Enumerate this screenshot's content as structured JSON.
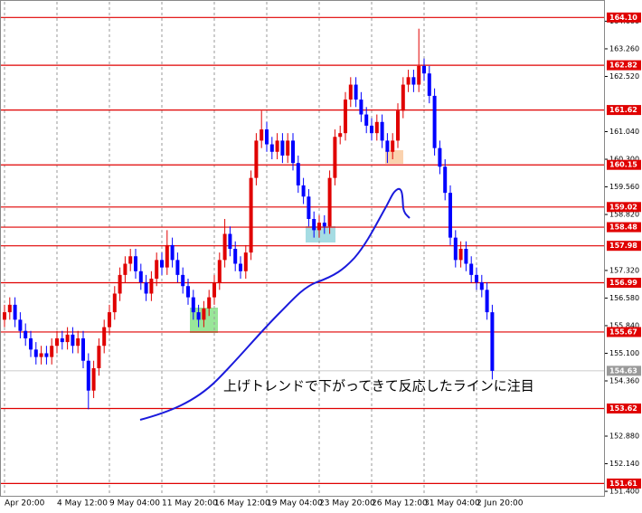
{
  "chart_data": {
    "type": "candlestick",
    "annotation": "上げトレンドで下がってきて反応したラインに注目",
    "categories": [
      "Apr 20:00",
      null,
      null,
      null,
      null,
      null,
      null,
      null,
      null,
      null,
      "4 May 12:00",
      null,
      null,
      null,
      null,
      null,
      null,
      null,
      null,
      null,
      "9 May 04:00",
      null,
      null,
      null,
      null,
      null,
      null,
      null,
      null,
      null,
      "11 May 20:00",
      null,
      null,
      null,
      null,
      null,
      null,
      null,
      null,
      null,
      "16 May 12:00",
      null,
      null,
      null,
      null,
      null,
      null,
      null,
      null,
      null,
      "19 May 04:00",
      null,
      null,
      null,
      null,
      null,
      null,
      null,
      null,
      null,
      "23 May 20:00",
      null,
      null,
      null,
      null,
      null,
      null,
      null,
      null,
      null,
      "26 May 12:00",
      null,
      null,
      null,
      null,
      null,
      null,
      null,
      null,
      null,
      "31 May 04:00",
      null,
      null,
      null,
      null,
      null,
      null,
      null,
      null,
      null,
      "2 Jun 20:00",
      null,
      null,
      null
    ],
    "open": [
      156.0,
      156.2,
      156.4,
      156.0,
      155.7,
      155.5,
      155.2,
      155.0,
      155.1,
      155.0,
      155.3,
      155.5,
      155.4,
      155.6,
      155.3,
      155.5,
      154.9,
      154.1,
      154.7,
      155.3,
      155.8,
      156.2,
      156.7,
      157.2,
      157.5,
      157.7,
      157.3,
      157.0,
      156.7,
      157.1,
      157.6,
      157.4,
      158.0,
      157.6,
      157.2,
      156.9,
      156.6,
      156.2,
      156.0,
      156.3,
      156.6,
      157.0,
      157.6,
      158.3,
      157.9,
      157.5,
      157.3,
      157.8,
      159.8,
      160.8,
      161.1,
      160.7,
      160.5,
      160.8,
      160.4,
      160.8,
      160.2,
      159.6,
      159.3,
      158.7,
      158.4,
      158.6,
      158.5,
      159.8,
      160.9,
      161.0,
      161.9,
      162.3,
      161.9,
      161.5,
      161.2,
      161.0,
      161.3,
      160.8,
      160.5,
      160.8,
      161.6,
      162.3,
      162.5,
      162.3,
      162.8,
      162.6,
      162.0,
      160.6,
      160.1,
      159.4,
      158.2,
      157.6,
      157.9,
      157.5,
      157.2,
      157.0,
      156.8,
      156.2
    ],
    "high": [
      156.4,
      156.6,
      156.6,
      156.2,
      155.9,
      155.7,
      155.4,
      155.3,
      155.3,
      155.5,
      155.7,
      155.7,
      155.8,
      155.8,
      155.7,
      155.7,
      155.1,
      154.9,
      155.5,
      156.0,
      156.4,
      156.9,
      157.4,
      157.7,
      157.9,
      157.9,
      157.5,
      157.2,
      157.3,
      157.8,
      157.8,
      158.4,
      158.2,
      157.8,
      157.4,
      157.1,
      156.8,
      156.4,
      156.5,
      156.8,
      157.2,
      157.8,
      158.7,
      158.5,
      158.1,
      157.7,
      158.0,
      160.0,
      161.0,
      161.6,
      161.3,
      160.9,
      161.0,
      161.0,
      161.0,
      161.0,
      160.4,
      159.8,
      159.5,
      158.9,
      158.8,
      158.8,
      160.0,
      161.1,
      161.2,
      162.1,
      162.5,
      162.5,
      162.1,
      161.7,
      161.4,
      161.5,
      161.5,
      161.0,
      161.0,
      161.8,
      162.5,
      162.7,
      162.7,
      163.8,
      163.0,
      162.8,
      162.2,
      160.8,
      160.3,
      159.6,
      158.4,
      158.1,
      158.1,
      157.7,
      157.4,
      157.2,
      157.0,
      156.4
    ],
    "low": [
      155.8,
      156.0,
      155.8,
      155.5,
      155.3,
      155.0,
      154.8,
      154.8,
      154.8,
      154.8,
      155.1,
      155.2,
      155.2,
      155.1,
      155.1,
      154.7,
      153.6,
      153.9,
      154.5,
      155.1,
      155.6,
      156.0,
      156.5,
      157.0,
      157.3,
      157.1,
      156.8,
      156.5,
      156.5,
      156.9,
      157.2,
      157.2,
      157.4,
      157.0,
      156.7,
      156.4,
      156.0,
      155.8,
      155.8,
      156.1,
      156.4,
      156.8,
      157.4,
      157.7,
      157.3,
      157.1,
      157.1,
      157.6,
      159.6,
      160.6,
      160.5,
      160.3,
      160.3,
      160.2,
      160.2,
      160.0,
      159.4,
      159.1,
      158.5,
      158.2,
      158.2,
      158.3,
      158.3,
      159.6,
      160.7,
      160.8,
      161.7,
      161.7,
      161.3,
      161.0,
      160.8,
      160.8,
      160.6,
      160.2,
      160.3,
      160.6,
      161.4,
      162.1,
      162.1,
      162.1,
      162.4,
      161.8,
      160.4,
      159.9,
      159.2,
      158.0,
      157.4,
      157.4,
      157.3,
      157.0,
      156.8,
      156.6,
      156.0,
      154.4
    ],
    "close": [
      156.2,
      156.4,
      156.0,
      155.7,
      155.5,
      155.2,
      155.0,
      155.1,
      155.0,
      155.3,
      155.5,
      155.4,
      155.6,
      155.3,
      155.5,
      154.9,
      154.1,
      154.7,
      155.3,
      155.8,
      156.2,
      156.7,
      157.2,
      157.5,
      157.7,
      157.3,
      157.0,
      156.7,
      157.1,
      157.6,
      157.4,
      158.0,
      157.6,
      157.2,
      156.9,
      156.6,
      156.2,
      156.0,
      156.3,
      156.6,
      157.0,
      157.6,
      158.3,
      157.9,
      157.5,
      157.3,
      157.8,
      159.8,
      160.8,
      161.1,
      160.7,
      160.5,
      160.8,
      160.4,
      160.8,
      160.2,
      159.6,
      159.3,
      158.7,
      158.4,
      158.6,
      158.5,
      159.8,
      160.9,
      161.0,
      161.9,
      162.3,
      161.9,
      161.5,
      161.2,
      161.0,
      161.3,
      160.8,
      160.5,
      160.8,
      161.6,
      162.3,
      162.5,
      162.3,
      162.8,
      162.6,
      162.0,
      160.6,
      160.1,
      159.4,
      158.2,
      157.6,
      157.9,
      157.5,
      157.2,
      157.0,
      156.8,
      156.2,
      154.63
    ],
    "up_color": "#e00000",
    "down_color": "#0000ff",
    "level_color": "#e00000",
    "ylim": [
      151.28,
      164.52
    ],
    "yticks": [
      {
        "value": 151.4,
        "label": "151.400"
      },
      {
        "value": 152.14,
        "label": "152.140"
      },
      {
        "value": 152.88,
        "label": "152.880"
      },
      {
        "value": 154.36,
        "label": "154.360"
      },
      {
        "value": 155.1,
        "label": "155.100"
      },
      {
        "value": 155.84,
        "label": "155.840"
      },
      {
        "value": 156.58,
        "label": "156.580"
      },
      {
        "value": 157.32,
        "label": "157.320"
      },
      {
        "value": 158.82,
        "label": "158.820"
      },
      {
        "value": 159.56,
        "label": "159.560"
      },
      {
        "value": 160.3,
        "label": "160.300"
      },
      {
        "value": 161.04,
        "label": "161.040"
      },
      {
        "value": 162.52,
        "label": "162.520"
      },
      {
        "value": 163.26,
        "label": "163.260"
      },
      {
        "value": 164.0,
        "label": "164.000"
      }
    ],
    "levels": [
      {
        "value": 164.1,
        "label": "164.10"
      },
      {
        "value": 162.82,
        "label": "162.82"
      },
      {
        "value": 161.62,
        "label": "161.62"
      },
      {
        "value": 160.15,
        "label": "160.15"
      },
      {
        "value": 159.02,
        "label": "159.02"
      },
      {
        "value": 158.48,
        "label": "158.48"
      },
      {
        "value": 157.98,
        "label": "157.98"
      },
      {
        "value": 156.99,
        "label": "156.99"
      },
      {
        "value": 155.67,
        "label": "155.67"
      },
      {
        "value": 153.62,
        "label": "153.62"
      },
      {
        "value": 151.61,
        "label": "151.61"
      }
    ],
    "last_price": 154.63,
    "xgrid": true
  }
}
